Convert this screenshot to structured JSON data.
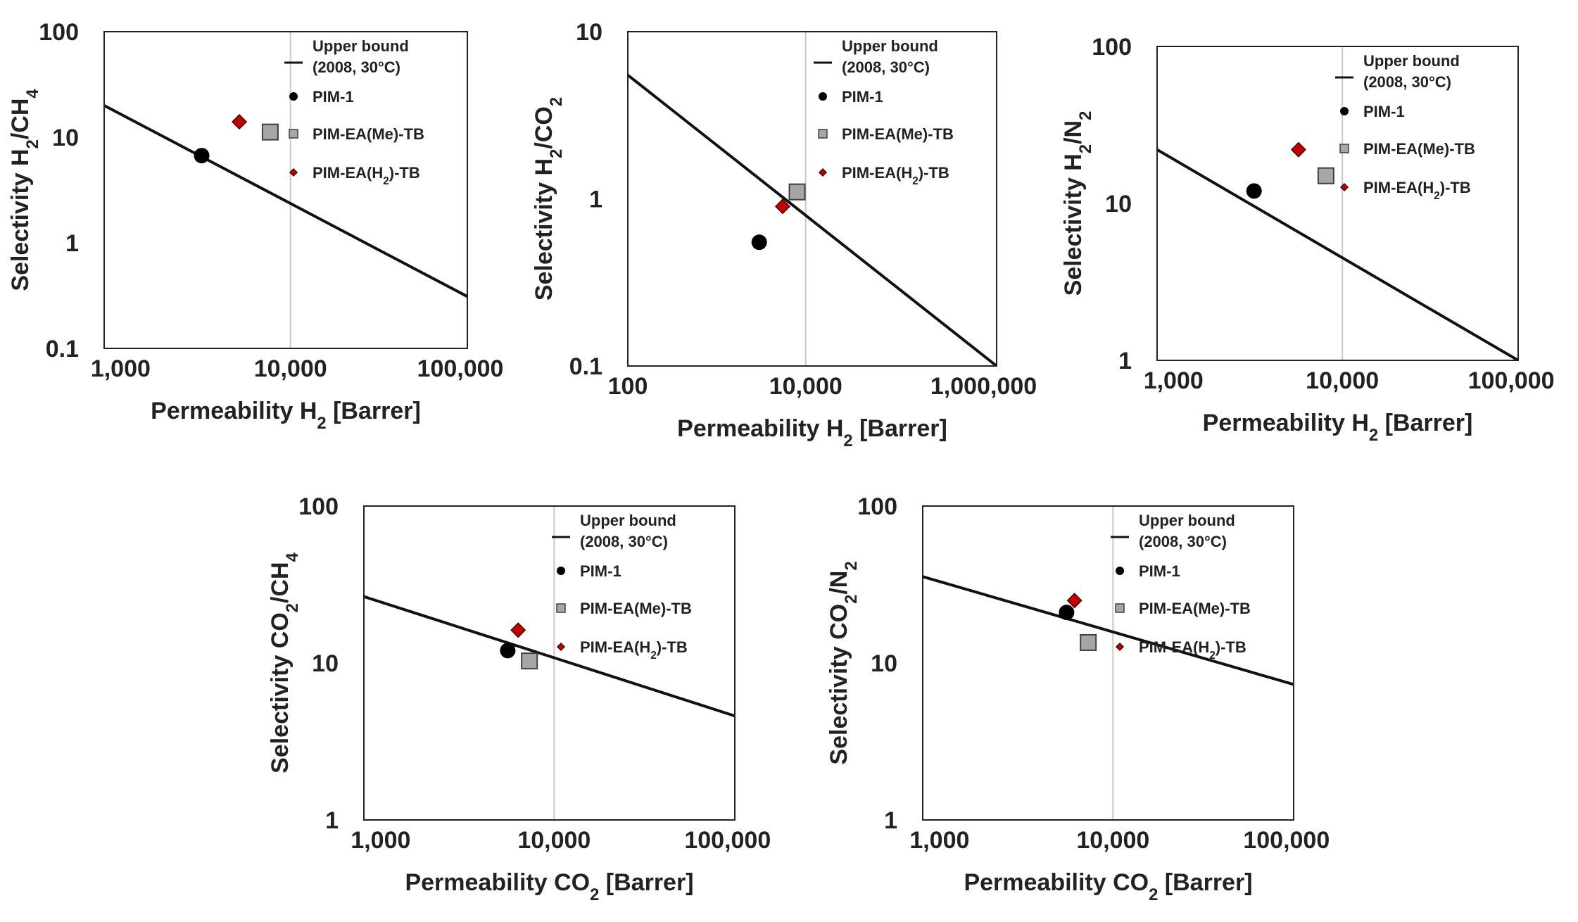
{
  "legend": {
    "upper_bound_line1": "Upper bound",
    "upper_bound_line2": "(2008, 30°C)",
    "pim1": "PIM-1",
    "pim_me": "PIM-EA(Me)-TB",
    "pim_h2_pre": "PIM-EA(H",
    "pim_h2_sub": "2",
    "pim_h2_post": ")-TB"
  },
  "colors": {
    "pim1": "#000000",
    "pim_me_fill": "#a6a6a6",
    "pim_me_stroke": "#404040",
    "pim_h2_fill": "#c00000",
    "pim_h2_stroke": "#4d0000",
    "upper_bound": "#111111",
    "frame": "#222222",
    "ref_line": "#c8c8c8"
  },
  "chart_data": [
    {
      "type": "scatter",
      "id": "h2-ch4",
      "title": "",
      "xscale": "log",
      "yscale": "log",
      "xlim": [
        800,
        110000
      ],
      "ylim": [
        0.1,
        100
      ],
      "xticks": [
        {
          "v": 1000,
          "label": "1,000"
        },
        {
          "v": 10000,
          "label": "10,000"
        },
        {
          "v": 100000,
          "label": "100,000"
        }
      ],
      "yticks": [
        {
          "v": 0.1,
          "label": "0.1"
        },
        {
          "v": 1,
          "label": "1"
        },
        {
          "v": 10,
          "label": "10"
        },
        {
          "v": 100,
          "label": "100"
        }
      ],
      "xlabel": {
        "pre": "Permeability H",
        "sub": "2",
        "post": " [Barrer]"
      },
      "ylabel": {
        "pre": "Selectivity H",
        "sub": "2",
        "mid": "/CH",
        "sub2": "4",
        "post": ""
      },
      "ref_x": 10000,
      "upper_bound": [
        [
          800,
          20
        ],
        [
          110000,
          0.31
        ]
      ],
      "series": [
        {
          "name": "PIM-1",
          "x": 3000,
          "y": 6.7
        },
        {
          "name": "PIM-EA(Me)-TB",
          "x": 7600,
          "y": 11.2
        },
        {
          "name": "PIM-EA(H2)-TB",
          "x": 5000,
          "y": 14
        }
      ]
    },
    {
      "type": "scatter",
      "id": "h2-co2",
      "title": "",
      "xscale": "log",
      "yscale": "log",
      "xlim": [
        100,
        1400000
      ],
      "ylim": [
        0.1,
        10
      ],
      "xticks": [
        {
          "v": 100,
          "label": "100"
        },
        {
          "v": 10000,
          "label": "10,000"
        },
        {
          "v": 1000000,
          "label": "1,000,000"
        }
      ],
      "yticks": [
        {
          "v": 0.1,
          "label": "0.1"
        },
        {
          "v": 1,
          "label": "1"
        },
        {
          "v": 10,
          "label": "10"
        }
      ],
      "xlabel": {
        "pre": "Permeability H",
        "sub": "2",
        "post": " [Barrer]"
      },
      "ylabel": {
        "pre": "Selectivity H",
        "sub": "2",
        "mid": "/CO",
        "sub2": "2",
        "post": ""
      },
      "ref_x": 10000,
      "upper_bound": [
        [
          100,
          5.5
        ],
        [
          1400000,
          0.1
        ]
      ],
      "series": [
        {
          "name": "PIM-1",
          "x": 3000,
          "y": 0.55
        },
        {
          "name": "PIM-EA(Me)-TB",
          "x": 8000,
          "y": 1.1
        },
        {
          "name": "PIM-EA(H2)-TB",
          "x": 5500,
          "y": 0.9
        }
      ]
    },
    {
      "type": "scatter",
      "id": "h2-n2",
      "title": "",
      "xscale": "log",
      "yscale": "log",
      "xlim": [
        800,
        110000
      ],
      "ylim": [
        1,
        100
      ],
      "xticks": [
        {
          "v": 1000,
          "label": "1,000"
        },
        {
          "v": 10000,
          "label": "10,000"
        },
        {
          "v": 100000,
          "label": "100,000"
        }
      ],
      "yticks": [
        {
          "v": 1,
          "label": "1"
        },
        {
          "v": 10,
          "label": "10"
        },
        {
          "v": 100,
          "label": "100"
        }
      ],
      "xlabel": {
        "pre": "Permeability H",
        "sub": "2",
        "post": " [Barrer]"
      },
      "ylabel": {
        "pre": "Selectivity H",
        "sub": "2",
        "mid": "/N",
        "sub2": "2",
        "post": ""
      },
      "ref_x": 10000,
      "upper_bound": [
        [
          800,
          22
        ],
        [
          110000,
          1
        ]
      ],
      "series": [
        {
          "name": "PIM-1",
          "x": 3000,
          "y": 12
        },
        {
          "name": "PIM-EA(Me)-TB",
          "x": 8000,
          "y": 15
        },
        {
          "name": "PIM-EA(H2)-TB",
          "x": 5500,
          "y": 22
        }
      ]
    },
    {
      "type": "scatter",
      "id": "co2-ch4",
      "title": "",
      "xscale": "log",
      "yscale": "log",
      "xlim": [
        800,
        110000
      ],
      "ylim": [
        1,
        100
      ],
      "xticks": [
        {
          "v": 1000,
          "label": "1,000"
        },
        {
          "v": 10000,
          "label": "10,000"
        },
        {
          "v": 100000,
          "label": "100,000"
        }
      ],
      "yticks": [
        {
          "v": 1,
          "label": "1"
        },
        {
          "v": 10,
          "label": "10"
        },
        {
          "v": 100,
          "label": "100"
        }
      ],
      "xlabel": {
        "pre": "Permeability CO",
        "sub": "2",
        "post": " [Barrer]"
      },
      "ylabel": {
        "pre": "Selectivity CO",
        "sub": "2",
        "mid": "/CH",
        "sub2": "4",
        "post": ""
      },
      "ref_x": 10000,
      "upper_bound": [
        [
          800,
          26.5
        ],
        [
          110000,
          4.6
        ]
      ],
      "series": [
        {
          "name": "PIM-1",
          "x": 5400,
          "y": 12
        },
        {
          "name": "PIM-EA(Me)-TB",
          "x": 7200,
          "y": 10.3
        },
        {
          "name": "PIM-EA(H2)-TB",
          "x": 6200,
          "y": 16.2
        }
      ]
    },
    {
      "type": "scatter",
      "id": "co2-n2",
      "title": "",
      "xscale": "log",
      "yscale": "log",
      "xlim": [
        800,
        110000
      ],
      "ylim": [
        1,
        100
      ],
      "xticks": [
        {
          "v": 1000,
          "label": "1,000"
        },
        {
          "v": 10000,
          "label": "10,000"
        },
        {
          "v": 100000,
          "label": "100,000"
        }
      ],
      "yticks": [
        {
          "v": 1,
          "label": "1"
        },
        {
          "v": 10,
          "label": "10"
        },
        {
          "v": 100,
          "label": "100"
        }
      ],
      "xlabel": {
        "pre": "Permeability CO",
        "sub": "2",
        "post": " [Barrer]"
      },
      "ylabel": {
        "pre": "Selectivity CO",
        "sub": "2",
        "mid": "/N",
        "sub2": "2",
        "post": ""
      },
      "ref_x": 10000,
      "upper_bound": [
        [
          800,
          35.5
        ],
        [
          110000,
          7.3
        ]
      ],
      "series": [
        {
          "name": "PIM-1",
          "x": 5400,
          "y": 21
        },
        {
          "name": "PIM-EA(Me)-TB",
          "x": 7200,
          "y": 13.5
        },
        {
          "name": "PIM-EA(H2)-TB",
          "x": 6000,
          "y": 25
        }
      ]
    }
  ]
}
